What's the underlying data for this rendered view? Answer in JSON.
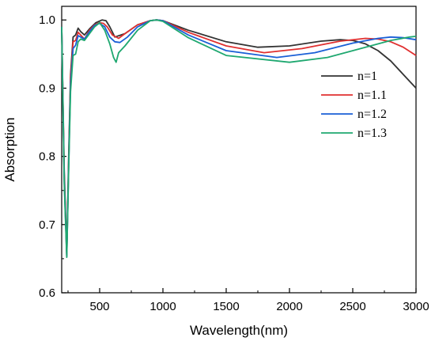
{
  "chart_data": {
    "type": "line",
    "title": "",
    "xlabel": "Wavelength(nm)",
    "ylabel": "Absorption",
    "xlim": [
      200,
      3000
    ],
    "ylim": [
      0.6,
      1.02
    ],
    "xticks": [
      500,
      1000,
      1500,
      2000,
      2500,
      3000
    ],
    "yticks": [
      0.6,
      0.7,
      0.8,
      0.9,
      1.0
    ],
    "xtick_labels": [
      "500",
      "1000",
      "1500",
      "2000",
      "2500",
      "3000"
    ],
    "ytick_labels": [
      "0.6",
      "0.7",
      "0.8",
      "0.9",
      "1.0"
    ],
    "grid": false,
    "legend_position": "right",
    "series": [
      {
        "name": "n=1",
        "color": "#333333",
        "x": [
          200,
          220,
          240,
          255,
          270,
          290,
          310,
          330,
          350,
          380,
          420,
          470,
          520,
          550,
          580,
          620,
          700,
          800,
          900,
          950,
          1000,
          1200,
          1500,
          1750,
          2000,
          2250,
          2400,
          2500,
          2600,
          2700,
          2800,
          2900,
          3000
        ],
        "y": [
          0.99,
          0.78,
          0.66,
          0.8,
          0.92,
          0.975,
          0.978,
          0.988,
          0.983,
          0.978,
          0.987,
          0.996,
          1.0,
          0.999,
          0.99,
          0.975,
          0.98,
          0.993,
          0.999,
          1.0,
          0.999,
          0.985,
          0.968,
          0.96,
          0.962,
          0.969,
          0.971,
          0.97,
          0.965,
          0.955,
          0.94,
          0.92,
          0.9
        ]
      },
      {
        "name": "n=1.1",
        "color": "#e03030",
        "x": [
          200,
          220,
          240,
          255,
          270,
          290,
          310,
          330,
          350,
          380,
          420,
          460,
          500,
          530,
          560,
          600,
          650,
          700,
          800,
          900,
          950,
          1000,
          1200,
          1500,
          1800,
          2100,
          2400,
          2600,
          2700,
          2800,
          2900,
          3000
        ],
        "y": [
          0.99,
          0.77,
          0.655,
          0.79,
          0.915,
          0.968,
          0.97,
          0.982,
          0.978,
          0.972,
          0.985,
          0.993,
          0.996,
          0.995,
          0.99,
          0.978,
          0.973,
          0.98,
          0.993,
          0.999,
          1.0,
          0.999,
          0.982,
          0.962,
          0.952,
          0.958,
          0.969,
          0.973,
          0.972,
          0.968,
          0.96,
          0.948
        ]
      },
      {
        "name": "n=1.2",
        "color": "#1a5fd6",
        "x": [
          200,
          220,
          240,
          255,
          270,
          290,
          310,
          330,
          350,
          380,
          420,
          460,
          500,
          540,
          580,
          620,
          660,
          720,
          800,
          900,
          950,
          1000,
          1200,
          1500,
          1900,
          2200,
          2500,
          2700,
          2800,
          2900,
          3000
        ],
        "y": [
          0.99,
          0.765,
          0.653,
          0.785,
          0.905,
          0.958,
          0.963,
          0.977,
          0.975,
          0.972,
          0.983,
          0.992,
          0.995,
          0.99,
          0.975,
          0.968,
          0.967,
          0.975,
          0.99,
          0.999,
          1.0,
          0.999,
          0.978,
          0.955,
          0.945,
          0.952,
          0.966,
          0.973,
          0.975,
          0.974,
          0.971
        ]
      },
      {
        "name": "n=1.3",
        "color": "#1fa870",
        "x": [
          200,
          220,
          240,
          255,
          270,
          290,
          310,
          330,
          350,
          380,
          420,
          460,
          500,
          540,
          580,
          610,
          630,
          650,
          700,
          800,
          900,
          950,
          1000,
          1200,
          1500,
          2000,
          2300,
          2600,
          2800,
          2950,
          3000
        ],
        "y": [
          0.99,
          0.76,
          0.652,
          0.78,
          0.895,
          0.948,
          0.95,
          0.968,
          0.972,
          0.97,
          0.98,
          0.99,
          0.996,
          0.985,
          0.965,
          0.945,
          0.938,
          0.952,
          0.962,
          0.985,
          0.999,
          1.0,
          0.998,
          0.974,
          0.948,
          0.938,
          0.945,
          0.96,
          0.97,
          0.975,
          0.976
        ]
      }
    ]
  }
}
